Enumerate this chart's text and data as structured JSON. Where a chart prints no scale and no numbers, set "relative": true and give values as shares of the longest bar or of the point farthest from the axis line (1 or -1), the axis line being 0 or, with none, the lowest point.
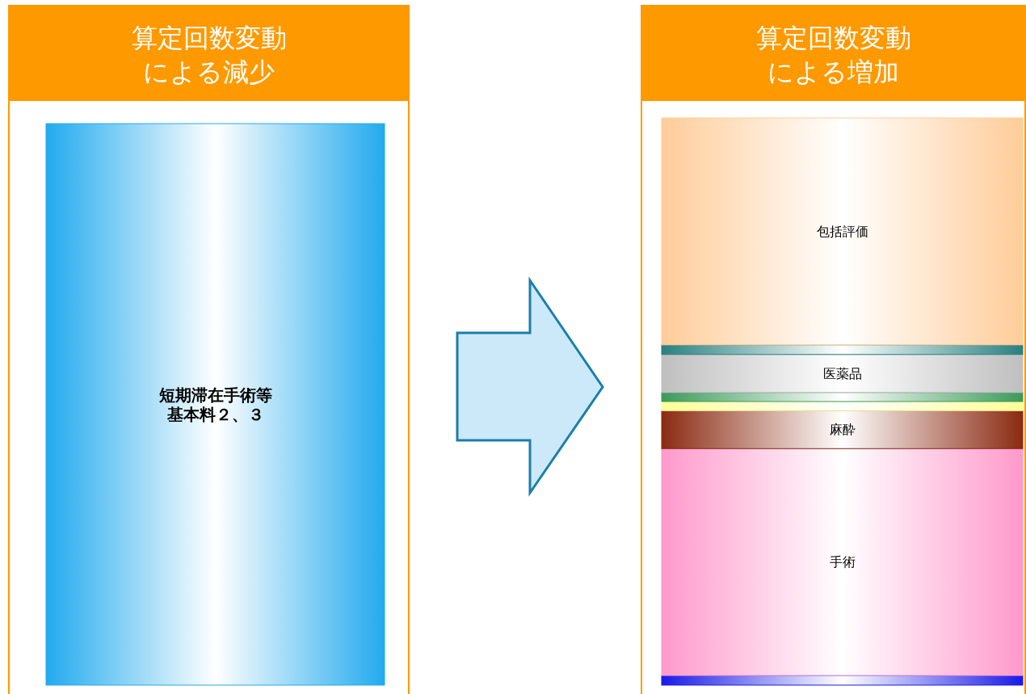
{
  "chart_data": {
    "type": "bar",
    "stacked": true,
    "relative": true,
    "categories": [
      "算定回数変動による減少",
      "算定回数変動による増加"
    ],
    "series": [
      {
        "name": "短期滞在手術等基本料２、３",
        "color": "#22aaee",
        "values": [
          0.99,
          null
        ]
      },
      {
        "color": "#1a1ae6",
        "values": [
          null,
          0.017
        ]
      },
      {
        "name": "手術",
        "color": "#ff99cc",
        "values": [
          null,
          0.4
        ]
      },
      {
        "name": "麻酔",
        "color": "#8b2a12",
        "values": [
          null,
          0.067
        ]
      },
      {
        "color": "#ffff99",
        "values": [
          null,
          0.016
        ]
      },
      {
        "color": "#3c9a5a",
        "values": [
          null,
          0.016
        ]
      },
      {
        "name": "医薬品",
        "color": "#bfbfbf",
        "values": [
          null,
          0.067
        ]
      },
      {
        "color": "#2a8080",
        "values": [
          null,
          0.017
        ]
      },
      {
        "name": "包括評価",
        "color": "#ffcc99",
        "values": [
          null,
          0.4
        ]
      }
    ]
  }
}
